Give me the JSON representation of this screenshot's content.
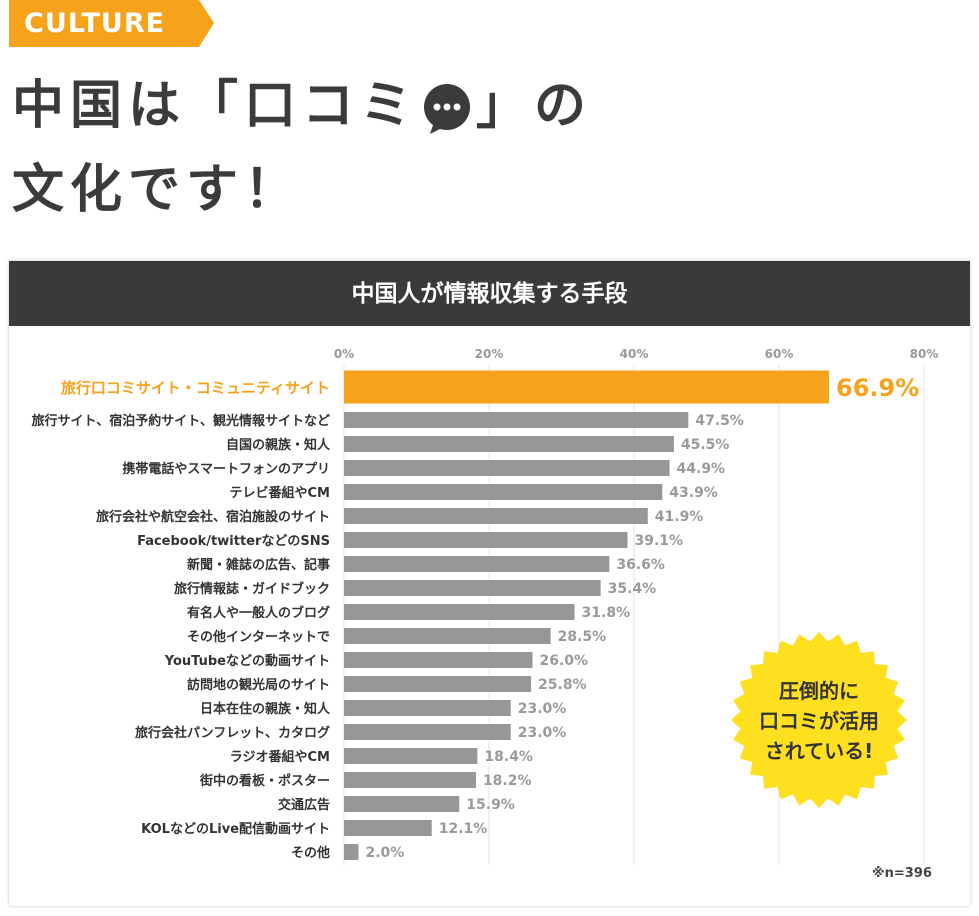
{
  "header": {
    "tag": "CULTURE",
    "title_line1_before": "中国は「口コミ",
    "title_line1_after": "」の",
    "title_line2": "文化です！"
  },
  "chart_title": "中国人が情報収集する手段",
  "callout": [
    "圧倒的に",
    "口コミが活用",
    "されている!"
  ],
  "sample_note": "※n=396",
  "colors": {
    "accent": "#f7a21b",
    "bar": "#979797",
    "burst": "#ffe020",
    "header_bg": "#3a3a3a",
    "title": "#3b3b3b"
  },
  "chart_data": {
    "type": "bar",
    "orientation": "horizontal",
    "title": "中国人が情報収集する手段",
    "xlim": [
      0,
      80
    ],
    "ticks": [
      "0%",
      "20%",
      "40%",
      "60%",
      "80%"
    ],
    "grid": true,
    "categories": [
      "旅行口コミサイト・コミュニティサイト",
      "旅行サイト、宿泊予約サイト、観光情報サイトなど",
      "自国の親族・知人",
      "携帯電話やスマートフォンのアプリ",
      "テレビ番組やCM",
      "旅行会社や航空会社、宿泊施設のサイト",
      "Facebook/twitterなどのSNS",
      "新聞・雑誌の広告、記事",
      "旅行情報誌・ガイドブック",
      "有名人や一般人のブログ",
      "その他インターネットで",
      "YouTubeなどの動画サイト",
      "訪問地の観光局のサイト",
      "日本在住の親族・知人",
      "旅行会社パンフレット、カタログ",
      "ラジオ番組やCM",
      "街中の看板・ポスター",
      "交通広告",
      "KOLなどのLive配信動画サイト",
      "その他"
    ],
    "values": [
      66.9,
      47.5,
      45.5,
      44.9,
      43.9,
      41.9,
      39.1,
      36.6,
      35.4,
      31.8,
      28.5,
      26.0,
      25.8,
      23.0,
      23.0,
      18.4,
      18.2,
      15.9,
      12.1,
      2.0
    ],
    "value_labels": [
      "66.9%",
      "47.5%",
      "45.5%",
      "44.9%",
      "43.9%",
      "41.9%",
      "39.1%",
      "36.6%",
      "35.4%",
      "31.8%",
      "28.5%",
      "26.0%",
      "25.8%",
      "23.0%",
      "23.0%",
      "18.4%",
      "18.2%",
      "15.9%",
      "12.1%",
      "2.0%"
    ],
    "highlight_index": 0
  }
}
